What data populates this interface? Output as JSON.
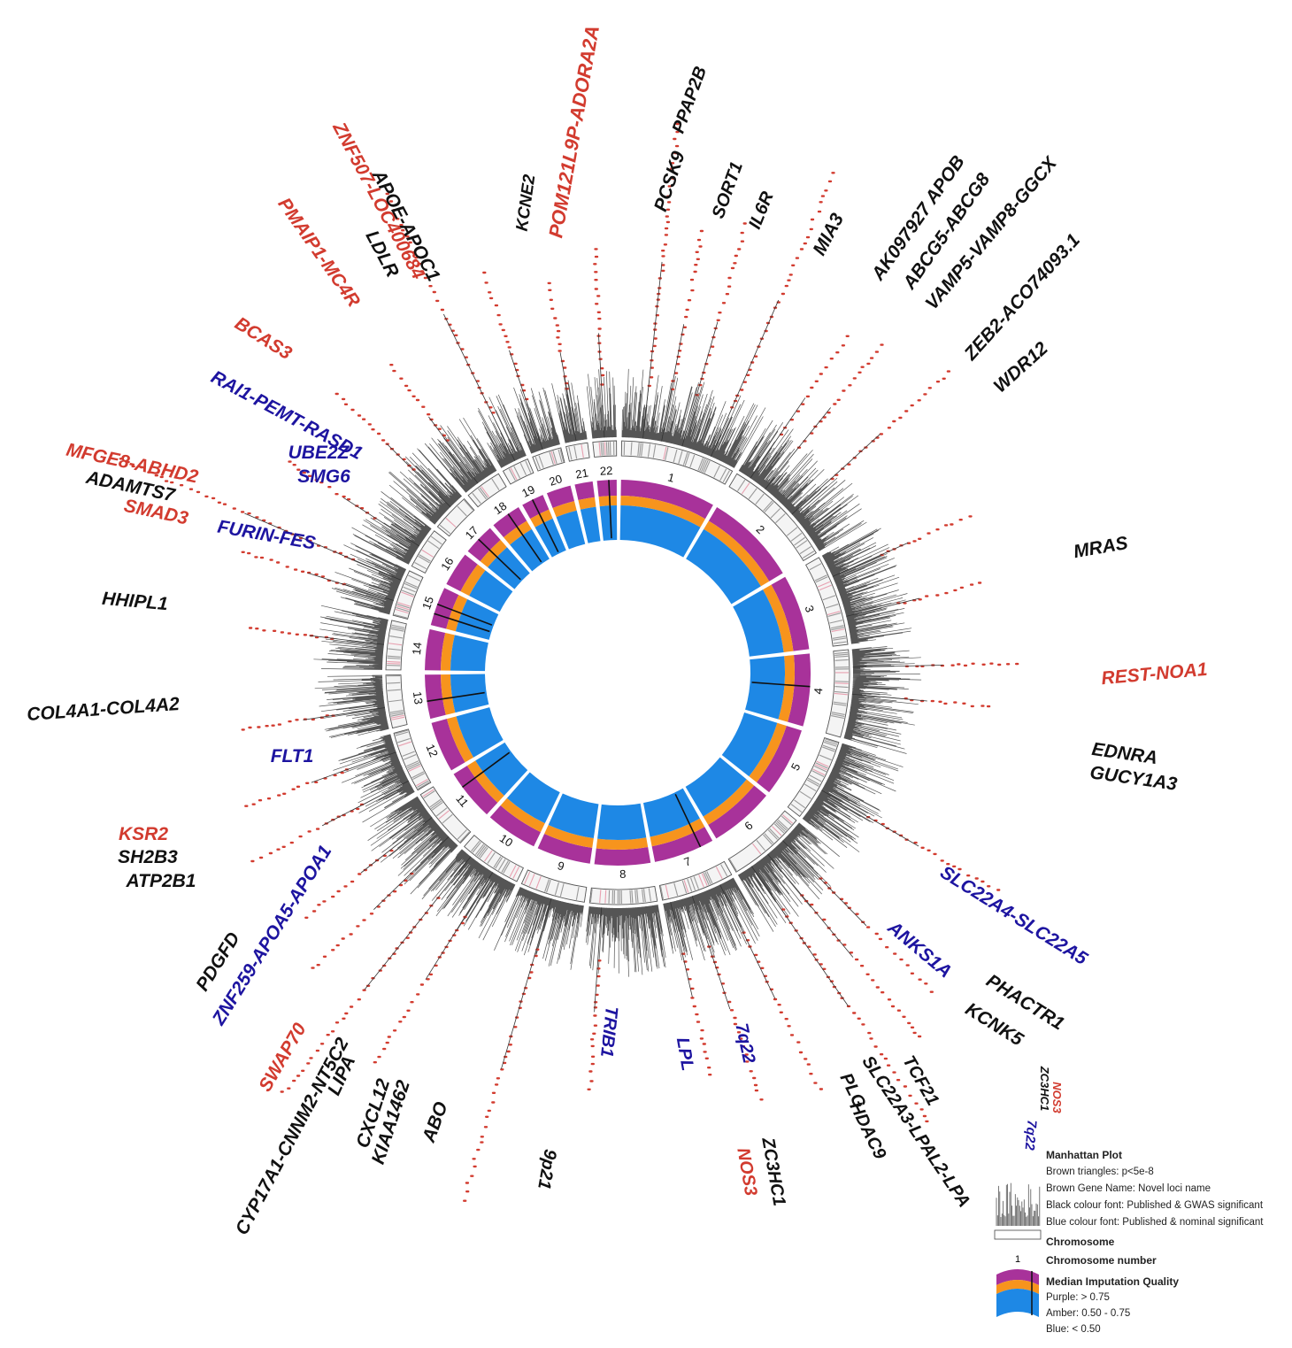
{
  "chart_data": {
    "type": "circular-manhattan",
    "chromosomes": [
      "1",
      "2",
      "3",
      "4",
      "5",
      "6",
      "7",
      "8",
      "9",
      "10",
      "11",
      "12",
      "13",
      "14",
      "15",
      "16",
      "17",
      "18",
      "19",
      "20",
      "21",
      "22"
    ],
    "chromosome_lengths_mb": [
      249,
      243,
      198,
      190,
      181,
      171,
      159,
      146,
      141,
      136,
      135,
      133,
      115,
      107,
      102,
      90,
      83,
      80,
      59,
      64,
      47,
      51
    ],
    "genes": [
      {
        "label": "POM121L9P-ADORA2A",
        "color": "red"
      },
      {
        "label": "PCSK9",
        "color": "black"
      },
      {
        "label": "PPAP2B",
        "color": "black"
      },
      {
        "label": "SORT1",
        "color": "black"
      },
      {
        "label": "IL6R",
        "color": "black"
      },
      {
        "label": "MIA3",
        "color": "black"
      },
      {
        "label": "AK097927 APOB",
        "color": "black"
      },
      {
        "label": "ABCG5-ABCG8",
        "color": "black"
      },
      {
        "label": "VAMP5-VAMP8-GGCX",
        "color": "black"
      },
      {
        "label": "ZEB2-ACO74093.1",
        "color": "black"
      },
      {
        "label": "WDR12",
        "color": "black"
      },
      {
        "label": "MRAS",
        "color": "black"
      },
      {
        "label": "REST-NOA1",
        "color": "red"
      },
      {
        "label": "EDNRA",
        "color": "black"
      },
      {
        "label": "GUCY1A3",
        "color": "black"
      },
      {
        "label": "SLC22A4-SLC22A5",
        "color": "blue"
      },
      {
        "label": "ANKS1A",
        "color": "blue"
      },
      {
        "label": "PHACTR1",
        "color": "black"
      },
      {
        "label": "KCNK5",
        "color": "black"
      },
      {
        "label": "ZC3HC1",
        "color": "black"
      },
      {
        "label": "NOS3",
        "color": "red"
      },
      {
        "label": "7q22",
        "color": "blue"
      },
      {
        "label": "TCF21",
        "color": "black"
      },
      {
        "label": "SLC22A3-LPAL2-LPA",
        "color": "black"
      },
      {
        "label": "PLG",
        "color": "black"
      },
      {
        "label": "HDAC9",
        "color": "black"
      },
      {
        "label": "ZC3HC1",
        "color": "black"
      },
      {
        "label": "NOS3",
        "color": "red"
      },
      {
        "label": "7q22",
        "color": "blue"
      },
      {
        "label": "LPL",
        "color": "blue"
      },
      {
        "label": "TRIB1",
        "color": "blue"
      },
      {
        "label": "9p21",
        "color": "black"
      },
      {
        "label": "ABO",
        "color": "black"
      },
      {
        "label": "CXCL12",
        "color": "black"
      },
      {
        "label": "KIAA1462",
        "color": "black"
      },
      {
        "label": "CYP17A1-CNNM2-NT5C2",
        "color": "black"
      },
      {
        "label": "LIPA",
        "color": "black"
      },
      {
        "label": "SWAP70",
        "color": "red"
      },
      {
        "label": "ZNF259-APOA5-APOA1",
        "color": "blue"
      },
      {
        "label": "PDGFD",
        "color": "black"
      },
      {
        "label": "KSR2",
        "color": "red"
      },
      {
        "label": "SH2B3",
        "color": "black"
      },
      {
        "label": "ATP2B1",
        "color": "black"
      },
      {
        "label": "FLT1",
        "color": "blue"
      },
      {
        "label": "COL4A1-COL4A2",
        "color": "black"
      },
      {
        "label": "HHIPL1",
        "color": "black"
      },
      {
        "label": "FURIN-FES",
        "color": "blue"
      },
      {
        "label": "MFGE8-ABHD2",
        "color": "red"
      },
      {
        "label": "ADAMTS7",
        "color": "black"
      },
      {
        "label": "SMAD3",
        "color": "red"
      },
      {
        "label": "UBE2Z",
        "color": "blue"
      },
      {
        "label": "SMG6",
        "color": "blue"
      },
      {
        "label": "RAI1-PEMT-RASD1",
        "color": "blue"
      },
      {
        "label": "BCAS3",
        "color": "red"
      },
      {
        "label": "PMAIP1-MC4R",
        "color": "red"
      },
      {
        "label": "ZNF507-LOC400684",
        "color": "red"
      },
      {
        "label": "APOE-APOC1",
        "color": "black"
      },
      {
        "label": "LDLR",
        "color": "black"
      },
      {
        "label": "KCNE2",
        "color": "black"
      }
    ],
    "legend": {
      "manhattan_title": "Manhattan Plot",
      "manhattan_lines": [
        "Brown triangles: p<5e-8",
        "Brown Gene Name: Novel loci name",
        "Black colour font: Published & GWAS significant",
        "Blue colour font: Published & nominal significant"
      ],
      "chromosome_label": "Chromosome",
      "chromosome_number_label": "Chromosome number",
      "chromosome_example_number": "1",
      "quality_title": "Median Imputation Quality",
      "quality_lines": [
        "Purple: > 0.75",
        "Amber: 0.50 - 0.75",
        "Blue: < 0.50"
      ]
    },
    "colors": {
      "purple": "#a8329a",
      "amber": "#f7941d",
      "blue": "#1e88e5",
      "red": "#d23b2f",
      "black": "#111111",
      "navy": "#1d14a0",
      "manhattan": "#555555"
    }
  }
}
